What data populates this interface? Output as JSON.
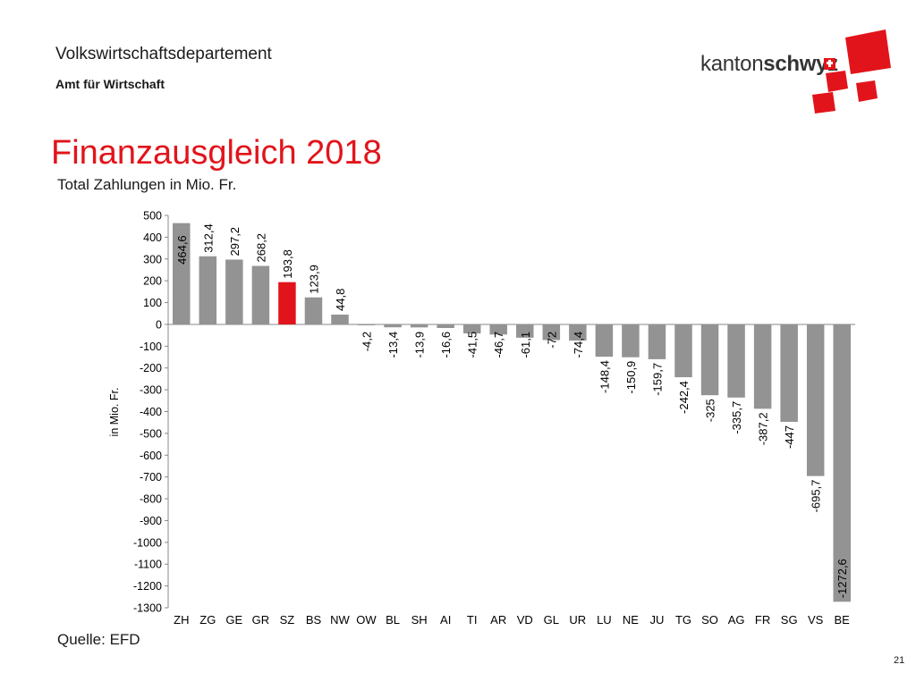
{
  "header": {
    "department": "Volkswirtschaftsdepartement",
    "office": "Amt für Wirtschaft",
    "logo_text_light": "kanton",
    "logo_text_bold": "schwyz"
  },
  "colors": {
    "title_red": "#e2141b",
    "bar_gray": "#939393",
    "highlight_red": "#e2141b",
    "logo_red": "#e2141b"
  },
  "footer": {
    "source": "Quelle: EFD",
    "page_number": "21"
  },
  "chart_data": {
    "type": "bar",
    "title": "Finanzausgleich 2018",
    "subtitle": "Total Zahlungen in Mio. Fr.",
    "xlabel": "",
    "ylabel": "in Mio. Fr.",
    "ylim": [
      -1300,
      500
    ],
    "yticks": [
      500,
      400,
      300,
      200,
      100,
      0,
      -100,
      -200,
      -300,
      -400,
      -500,
      -600,
      -700,
      -800,
      -900,
      -1000,
      -1100,
      -1200,
      -1300
    ],
    "grid": false,
    "legend": "none",
    "highlight_category": "SZ",
    "categories": [
      "ZH",
      "ZG",
      "GE",
      "GR",
      "SZ",
      "BS",
      "NW",
      "OW",
      "BL",
      "SH",
      "AI",
      "TI",
      "AR",
      "VD",
      "GL",
      "UR",
      "LU",
      "NE",
      "JU",
      "TG",
      "SO",
      "AG",
      "FR",
      "SG",
      "VS",
      "BE"
    ],
    "values": [
      464.6,
      312.4,
      297.2,
      268.2,
      193.8,
      123.9,
      44.8,
      -4.2,
      -13.4,
      -13.9,
      -16.6,
      -41.5,
      -46.7,
      -61.1,
      -72,
      -74.4,
      -148.4,
      -150.9,
      -159.7,
      -242.4,
      -325,
      -335.7,
      -387.2,
      -447,
      -695.7,
      -1272.6
    ],
    "data_labels": [
      "464,6",
      "312,4",
      "297,2",
      "268,2",
      "193,8",
      "123,9",
      "44,8",
      "-4,2",
      "-13,4",
      "-13,9",
      "-16,6",
      "-41,5",
      "-46,7",
      "-61,1",
      "-72",
      "-74,4",
      "-148,4",
      "-150,9",
      "-159,7",
      "-242,4",
      "-325",
      "-335,7",
      "-387,2",
      "-447",
      "-695,7",
      "-1272,6"
    ]
  }
}
